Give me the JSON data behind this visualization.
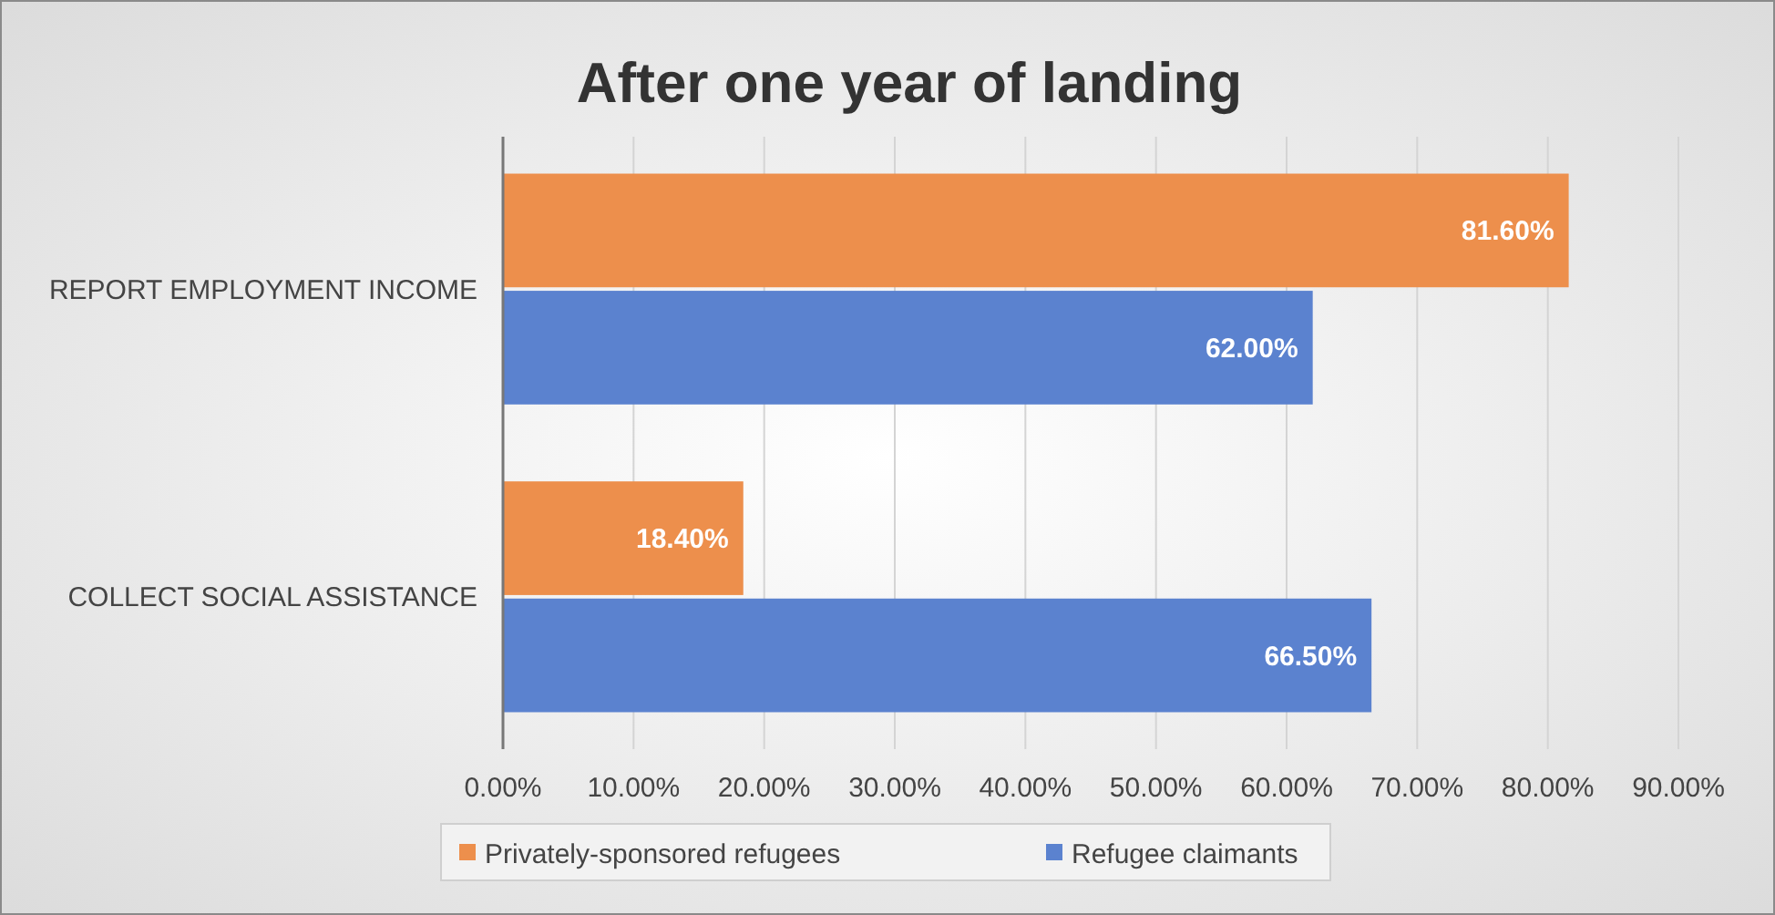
{
  "chart_data": {
    "type": "bar",
    "orientation": "horizontal",
    "title": "After one year of landing",
    "categories": [
      "REPORT EMPLOYMENT INCOME",
      "COLLECT SOCIAL ASSISTANCE"
    ],
    "series": [
      {
        "name": "Privately-sponsored refugees",
        "color": "#ed8f4c",
        "values": [
          81.6,
          18.4
        ],
        "value_labels": [
          "81.60%",
          "18.40%"
        ]
      },
      {
        "name": "Refugee claimants",
        "color": "#5b82cf",
        "values": [
          62.0,
          66.5
        ],
        "value_labels": [
          "62.00%",
          "66.50%"
        ]
      }
    ],
    "xlim": [
      0,
      90
    ],
    "xticks": [
      {
        "value": 0,
        "label": "0.00%"
      },
      {
        "value": 10,
        "label": "10.00%"
      },
      {
        "value": 20,
        "label": "20.00%"
      },
      {
        "value": 30,
        "label": "30.00%"
      },
      {
        "value": 40,
        "label": "40.00%"
      },
      {
        "value": 50,
        "label": "50.00%"
      },
      {
        "value": 60,
        "label": "60.00%"
      },
      {
        "value": 70,
        "label": "70.00%"
      },
      {
        "value": 80,
        "label": "80.00%"
      },
      {
        "value": 90,
        "label": "90.00%"
      }
    ],
    "grid": "x",
    "legend": "bottom"
  }
}
